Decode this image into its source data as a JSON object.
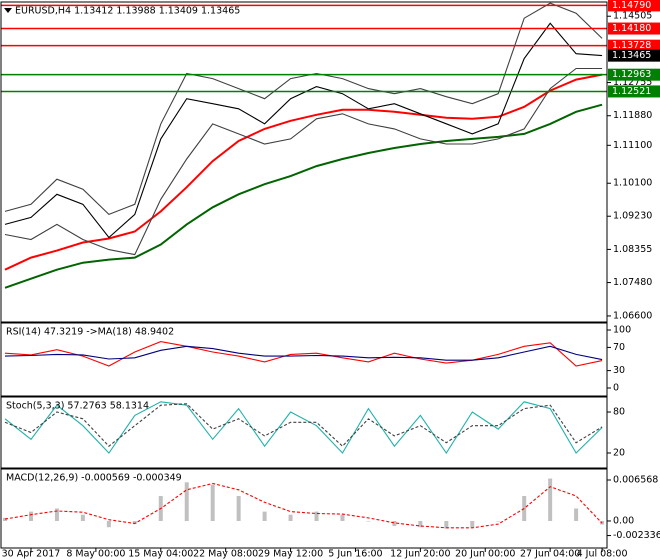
{
  "chart_data": [
    {
      "type": "line",
      "title": "EURUSD,H4 1.13412 1.13988 1.13409 1.13465",
      "x": [
        0,
        2,
        4,
        6,
        8,
        10,
        12,
        14,
        16,
        18,
        20,
        22,
        24,
        26,
        28,
        30,
        32,
        34,
        36,
        38,
        40,
        42,
        44,
        46
      ],
      "xlim": [
        -0.31,
        46.38
      ],
      "ylim": [
        1.0644,
        1.1488
      ],
      "yticks": [
        {
          "value": 1.066,
          "label": "1.06600"
        },
        {
          "value": 1.0748,
          "label": "1.07480"
        },
        {
          "value": 1.08355,
          "label": "1.08355"
        },
        {
          "value": 1.0923,
          "label": "1.09230"
        },
        {
          "value": 1.101,
          "label": "1.10100"
        },
        {
          "value": 1.111,
          "label": "1.11100"
        },
        {
          "value": 1.1188,
          "label": "1.11880"
        },
        {
          "value": 1.12755,
          "label": "1.12755"
        },
        {
          "value": 1.14505,
          "label": "1.14505"
        }
      ],
      "series": [
        {
          "color": "#006400",
          "values": [
            1.07342,
            1.07581,
            1.07819,
            1.08005,
            1.08085,
            1.08138,
            1.08483,
            1.09013,
            1.09464,
            1.09809,
            1.10074,
            1.10287,
            1.10552,
            1.10738,
            1.10897,
            1.1103,
            1.11136,
            1.11215,
            1.11268,
            1.11321,
            1.11401,
            1.11666,
            1.11985,
            1.1217
          ]
        },
        {
          "color": "#ff0000",
          "values": [
            1.07819,
            1.08138,
            1.08324,
            1.08536,
            1.08642,
            1.08828,
            1.09358,
            1.09995,
            1.10685,
            1.11215,
            1.11534,
            1.11746,
            1.11905,
            1.12038,
            1.12038,
            1.11985,
            1.11905,
            1.11825,
            1.11799,
            1.11852,
            1.12117,
            1.12542,
            1.12834,
            1.12966
          ]
        },
        {
          "color": "#404040",
          "values": [
            1.09358,
            1.09544,
            1.10207,
            1.09942,
            1.09279,
            1.09544,
            1.11666,
            1.12993,
            1.1286,
            1.12595,
            1.1233,
            1.1286,
            1.12993,
            1.1286,
            1.12595,
            1.12462,
            1.12595,
            1.12383,
            1.12197,
            1.12462,
            1.14452,
            1.1485,
            1.14585,
            1.13921
          ]
        },
        {
          "color": "#404040",
          "values": [
            1.08748,
            1.08615,
            1.09013,
            1.08615,
            1.0835,
            1.08217,
            1.09677,
            1.10738,
            1.11666,
            1.11401,
            1.11136,
            1.11268,
            1.11799,
            1.11932,
            1.11666,
            1.11534,
            1.11268,
            1.11136,
            1.11136,
            1.11268,
            1.11534,
            1.12595,
            1.13125,
            1.13125
          ]
        },
        {
          "color": "#000000",
          "values": [
            1.09014,
            1.09199,
            1.09809,
            1.09544,
            1.08669,
            1.09279,
            1.11268,
            1.12329,
            1.12197,
            1.12064,
            1.11667,
            1.12329,
            1.12648,
            1.12462,
            1.12064,
            1.12197,
            1.11932,
            1.11667,
            1.11401,
            1.11667,
            1.13391,
            1.14319,
            1.13516,
            1.13465
          ]
        }
      ],
      "levels": [
        {
          "value": 1.1479,
          "label": "1.14790",
          "color": "#ff0000"
        },
        {
          "value": 1.1418,
          "label": "1.14180",
          "color": "#ff0000"
        },
        {
          "value": 1.13728,
          "label": "1.13728",
          "color": "#ff0000"
        },
        {
          "value": 1.12963,
          "label": "1.12963",
          "color": "#008000"
        },
        {
          "value": 1.12521,
          "label": "1.12521",
          "color": "#008000"
        }
      ],
      "last_price": {
        "value": 1.13465,
        "label": "1.13465"
      }
    },
    {
      "type": "line",
      "title": "RSI(14) 47.3219 ->MA(18) 48.9402",
      "x": [
        0,
        2,
        4,
        6,
        8,
        10,
        12,
        14,
        16,
        18,
        20,
        22,
        24,
        26,
        28,
        30,
        32,
        34,
        36,
        38,
        40,
        42,
        44,
        46
      ],
      "xlim": [
        -0.31,
        46.38
      ],
      "ylim": [
        -13.8,
        112.1
      ],
      "yticks": [
        0,
        30,
        70,
        100
      ],
      "series": [
        {
          "color": "#ff0000",
          "values": [
            60,
            57,
            66,
            55,
            38,
            62,
            80,
            72,
            62,
            55,
            45,
            58,
            60,
            52,
            45,
            60,
            50,
            43,
            48,
            58,
            72,
            78,
            38,
            47.3219
          ]
        },
        {
          "color": "#000080",
          "values": [
            55,
            56,
            58,
            57,
            50,
            52,
            65,
            72,
            68,
            60,
            55,
            55,
            56,
            55,
            52,
            53,
            52,
            48,
            48,
            52,
            62,
            72,
            58,
            48.9402
          ]
        }
      ]
    },
    {
      "type": "line",
      "title": "Stoch(5,3,3) 57.2763 58.1314",
      "x": [
        0,
        2,
        4,
        6,
        8,
        10,
        12,
        14,
        16,
        18,
        20,
        22,
        24,
        26,
        28,
        30,
        32,
        34,
        36,
        38,
        40,
        42,
        44,
        46
      ],
      "xlim": [
        -0.31,
        46.38
      ],
      "ylim": [
        -2,
        102
      ],
      "yticks": [
        20,
        80
      ],
      "series": [
        {
          "color": "#20b2aa",
          "values": [
            70,
            40,
            90,
            60,
            20,
            75,
            95,
            90,
            40,
            85,
            30,
            80,
            60,
            20,
            85,
            30,
            75,
            20,
            80,
            55,
            95,
            85,
            20,
            57.2763
          ]
        },
        {
          "color": "#404040",
          "style": "dashed",
          "values": [
            65,
            50,
            80,
            70,
            30,
            60,
            90,
            92,
            55,
            70,
            45,
            65,
            65,
            30,
            70,
            45,
            60,
            35,
            60,
            60,
            85,
            90,
            35,
            58.1314
          ]
        }
      ]
    },
    {
      "type": "line",
      "title": "MACD(12,26,9) -0.000569 -0.000349",
      "x": [
        0,
        2,
        4,
        6,
        8,
        10,
        12,
        14,
        16,
        18,
        20,
        22,
        24,
        26,
        28,
        30,
        32,
        34,
        36,
        38,
        40,
        42,
        44,
        46
      ],
      "xlim": [
        -0.31,
        46.38
      ],
      "ylim": [
        -0.00433,
        0.00833
      ],
      "yticks": [
        -0.002336,
        {
          "value": 0,
          "label": "0.00"
        },
        0.006568
      ],
      "xticks": [
        {
          "value": 2,
          "label": "30 Apr 2017"
        },
        {
          "value": 7,
          "label": "8 May 00:00"
        },
        {
          "value": 12,
          "label": "15 May 04:00"
        },
        {
          "value": 17,
          "label": "22 May 08:00"
        },
        {
          "value": 22,
          "label": "29 May 12:00"
        },
        {
          "value": 27,
          "label": "5 Jun 16:00"
        },
        {
          "value": 32,
          "label": "12 Jun 20:00"
        },
        {
          "value": 37,
          "label": "20 Jun 00:00"
        },
        {
          "value": 42,
          "label": "27 Jun 04:00"
        },
        {
          "value": 46,
          "label": "4 Jul 08:00"
        }
      ],
      "series": [
        {
          "color": "#c0c0c0",
          "style": "bars",
          "values": [
            0.0005,
            0.0015,
            0.002,
            0.001,
            -0.001,
            -0.0005,
            0.004,
            0.0062,
            0.0058,
            0.004,
            0.0015,
            0.001,
            0.0015,
            0.001,
            0.0,
            -0.0008,
            -0.001,
            -0.0012,
            -0.001,
            0.0,
            0.004,
            0.0068,
            0.002,
            -0.000569
          ]
        },
        {
          "color": "#ff0000",
          "style": "dashed",
          "values": [
            0.0003,
            0.001,
            0.0016,
            0.0014,
            0.0002,
            -0.0004,
            0.002,
            0.005,
            0.006,
            0.005,
            0.003,
            0.0015,
            0.0012,
            0.0011,
            0.0005,
            -0.0003,
            -0.0008,
            -0.0011,
            -0.0011,
            -0.0005,
            0.002,
            0.0055,
            0.004,
            -0.000349
          ]
        }
      ]
    }
  ]
}
